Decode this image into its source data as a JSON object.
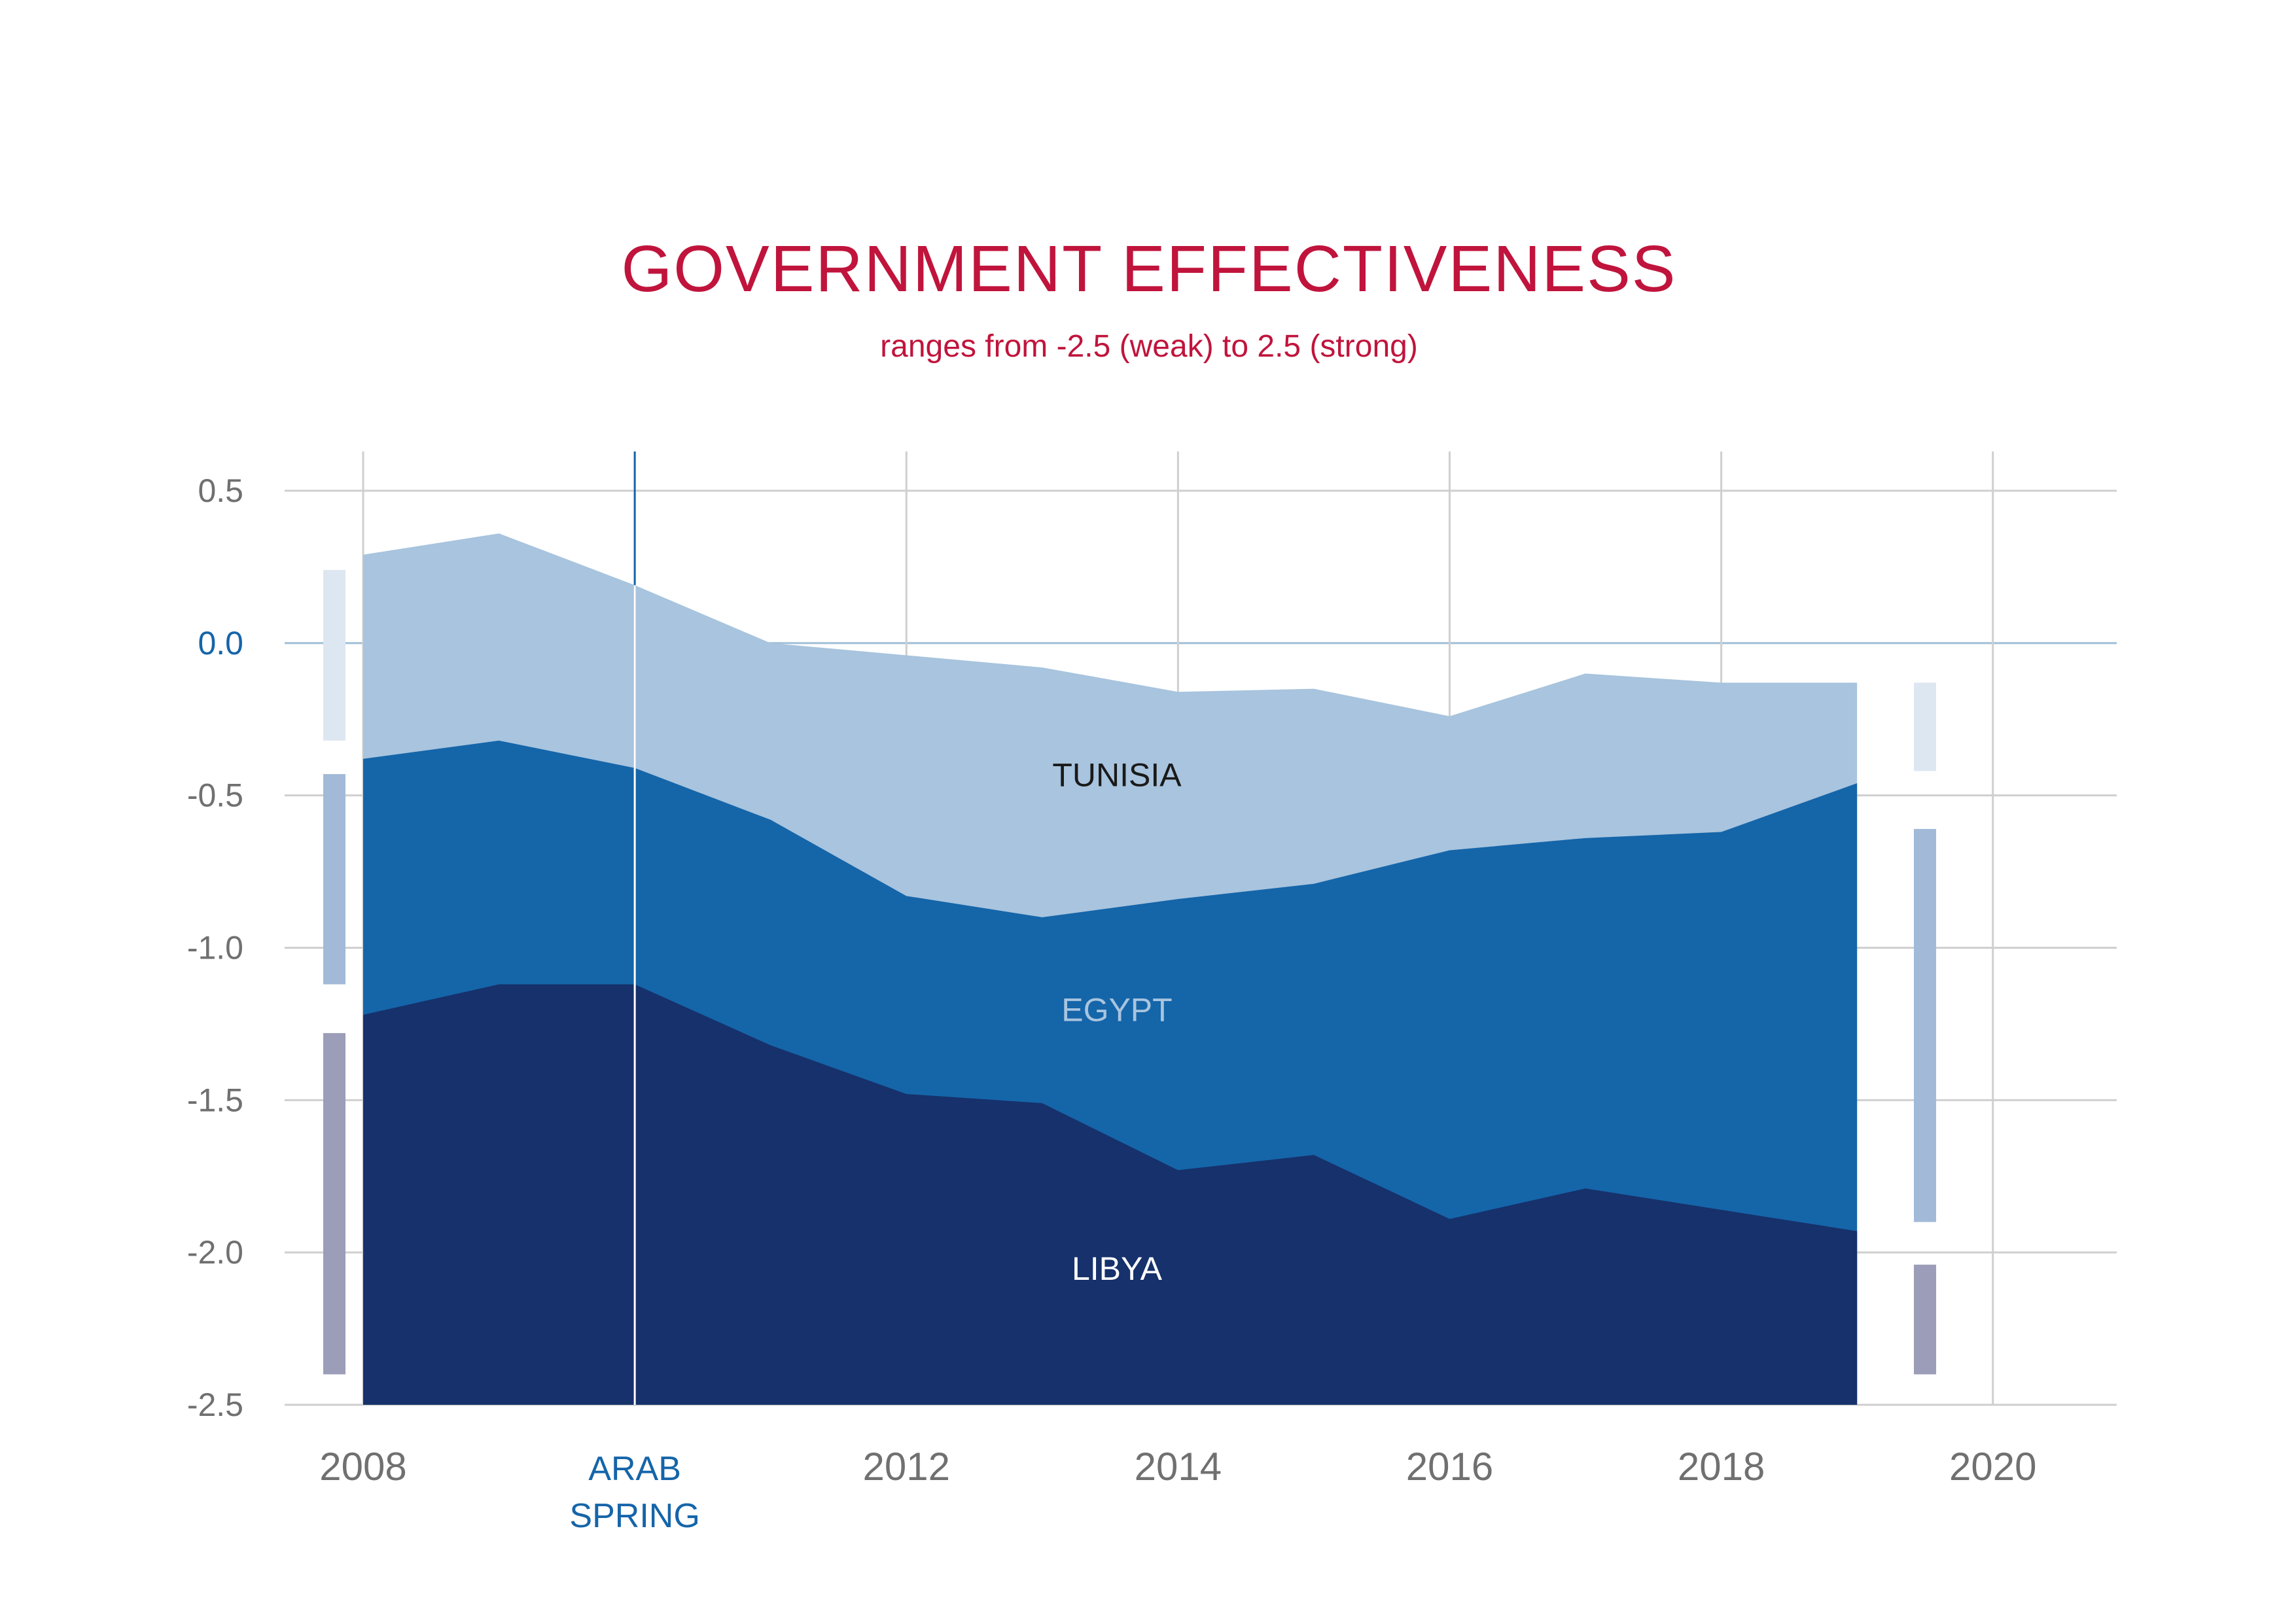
{
  "chart_data": {
    "type": "area",
    "title": "GOVERNMENT EFFECTIVENESS",
    "subtitle": "ranges from -2.5 (weak) to 2.5 (strong)",
    "x": [
      2008,
      2009,
      2010,
      2011,
      2012,
      2013,
      2014,
      2015,
      2016,
      2017,
      2018,
      2019
    ],
    "series": [
      {
        "name": "TUNISIA",
        "color": "#a8c4de",
        "label_color": "#1a1a1a",
        "values": [
          0.29,
          0.36,
          0.19,
          0.0,
          -0.04,
          -0.08,
          -0.16,
          -0.15,
          -0.24,
          -0.1,
          -0.13,
          -0.13
        ]
      },
      {
        "name": "EGYPT",
        "color": "#1565a9",
        "label_color": "#a8c4de",
        "values": [
          -0.38,
          -0.32,
          -0.41,
          -0.58,
          -0.83,
          -0.9,
          -0.84,
          -0.79,
          -0.68,
          -0.64,
          -0.62,
          -0.46
        ]
      },
      {
        "name": "LIBYA",
        "color": "#16316b",
        "label_color": "#ffffff",
        "values": [
          -1.22,
          -1.12,
          -1.12,
          -1.32,
          -1.48,
          -1.51,
          -1.73,
          -1.68,
          -1.89,
          -1.79,
          -1.86,
          -1.93
        ]
      }
    ],
    "ylim": [
      -2.5,
      0.5
    ],
    "xlim": [
      2008,
      2020.3
    ],
    "yticks": [
      "0.5",
      "0.0",
      "-0.5",
      "-1.0",
      "-1.5",
      "-2.0",
      "-2.5"
    ],
    "ytick_values": [
      0.5,
      0.0,
      -0.5,
      -1.0,
      -1.5,
      -2.0,
      -2.5
    ],
    "xticks": [
      "2008",
      "2012",
      "2014",
      "2016",
      "2018",
      "2020"
    ],
    "xtick_values": [
      2008,
      2012,
      2014,
      2016,
      2018,
      2020
    ],
    "vertical_gridlines": [
      2008,
      2010,
      2012,
      2014,
      2016,
      2018,
      2020
    ],
    "event": {
      "x": 2010,
      "label_lines": [
        "ARAB",
        "SPRING"
      ],
      "color": "#1565a9"
    },
    "range_bars": {
      "left": [
        {
          "series": "TUNISIA",
          "range": [
            -0.32,
            0.24
          ],
          "color": "#dde7f1"
        },
        {
          "series": "EGYPT",
          "range": [
            -1.12,
            -0.43
          ],
          "color": "#a2bad8"
        },
        {
          "series": "LIBYA",
          "range": [
            -2.4,
            -1.28
          ],
          "color": "#9c9db8"
        }
      ],
      "right": [
        {
          "series": "TUNISIA",
          "range": [
            -0.42,
            -0.13
          ],
          "color": "#dde7f1"
        },
        {
          "series": "EGYPT",
          "range": [
            -1.9,
            -0.61
          ],
          "color": "#a2bad8"
        },
        {
          "series": "LIBYA",
          "range": [
            -2.4,
            -2.04
          ],
          "color": "#9c9db8"
        }
      ]
    },
    "series_labels": [
      {
        "series": "TUNISIA",
        "x": 2013.55,
        "y": -0.47
      },
      {
        "series": "EGYPT",
        "x": 2013.55,
        "y": -1.24
      },
      {
        "series": "LIBYA",
        "x": 2013.55,
        "y": -2.09
      }
    ],
    "grid": true,
    "grid_color": "#cfcfcf",
    "zero_line_color": "#9fbfd6"
  }
}
